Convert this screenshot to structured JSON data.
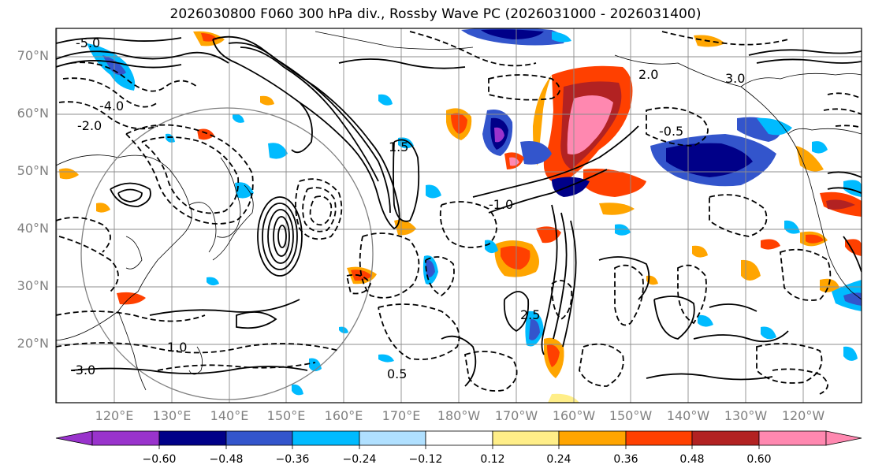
{
  "title": "2026030800 F060 300 hPa div., Rossby Wave PC (2026031000 - 2026031400)",
  "map": {
    "field": "300 hPa divergence",
    "overlay": "Rossby Wave PC",
    "lat_labels": [
      "70°N",
      "60°N",
      "50°N",
      "40°N",
      "30°N",
      "20°N"
    ],
    "lon_labels": [
      "120°E",
      "130°E",
      "140°E",
      "150°E",
      "160°E",
      "170°E",
      "180°W",
      "170°W",
      "160°W",
      "150°W",
      "140°W",
      "130°W",
      "120°W"
    ],
    "contour_labels": [
      "-5.0",
      "-4.0",
      "-3.0",
      "-2.0",
      "-1.0",
      "-0.5",
      "0.5",
      "1.0",
      "1.5",
      "2.0",
      "2.5",
      "3.0"
    ],
    "colors": {
      "land_outline": "#000000",
      "grid": "#8c8c8c",
      "circle": "#808080"
    }
  },
  "colorbar": {
    "ticks": [
      "−0.60",
      "−0.48",
      "−0.36",
      "−0.24",
      "−0.12",
      "0.12",
      "0.24",
      "0.36",
      "0.48",
      "0.60"
    ],
    "colors": [
      "#9933cc",
      "#000088",
      "#3355cc",
      "#00bbff",
      "#b0e0ff",
      "#ffffff",
      "#ffee88",
      "#ffa500",
      "#ff4000",
      "#b22222",
      "#ff88b0"
    ]
  }
}
